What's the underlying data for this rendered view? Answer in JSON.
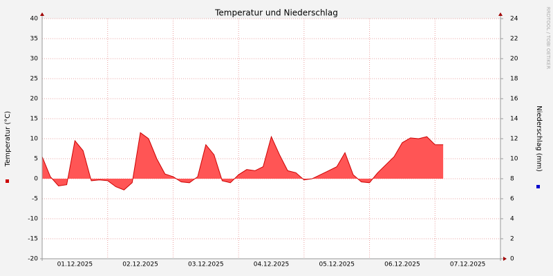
{
  "chart_data": {
    "type": "area",
    "title": "Temperatur und Niederschlag",
    "y_label": "Temperatur (°C)",
    "y2_label": "Niederschlag (mm)",
    "watermark": "RRDTOOL / TOBI OETIKER",
    "categories": [
      null,
      null,
      null,
      null,
      "01.12.2025",
      null,
      null,
      null,
      null,
      null,
      null,
      null,
      "02.12.2025",
      null,
      null,
      null,
      null,
      null,
      null,
      null,
      "03.12.2025",
      null,
      null,
      null,
      null,
      null,
      null,
      null,
      "04.12.2025",
      null,
      null,
      null,
      null,
      null,
      null,
      null,
      "05.12.2025",
      null,
      null,
      null,
      null,
      null,
      null,
      null,
      "06.12.2025",
      null,
      null,
      null,
      null,
      null,
      null,
      null,
      "07.12.2025",
      null,
      null,
      null,
      null
    ],
    "series": [
      {
        "color": "#ff5555",
        "values": [
          5.5,
          0.5,
          -1.8,
          -1.5,
          9.5,
          7,
          -0.5,
          -0.3,
          -0.5,
          -2,
          -2.8,
          -1,
          11.5,
          10,
          5,
          1.2,
          0.5,
          -0.8,
          -1,
          0.5,
          8.5,
          6,
          -0.5,
          -1,
          1,
          2.3,
          2,
          3,
          10.5,
          6,
          2,
          1.5,
          -0.3,
          0,
          1,
          2,
          3,
          6.5,
          1,
          -0.8,
          -1,
          1.5,
          3.5,
          5.5,
          9,
          10.2,
          10,
          10.5,
          8.5,
          8.5,
          null,
          null,
          null,
          null,
          null,
          null,
          null
        ]
      }
    ],
    "ylim": [
      -20,
      40
    ],
    "yticks": [
      -20,
      -15,
      -10,
      -5,
      0,
      5,
      10,
      15,
      20,
      25,
      30,
      35,
      40
    ],
    "y2lim": [
      0,
      24
    ],
    "y2ticks": [
      0,
      2,
      4,
      6,
      8,
      10,
      12,
      14,
      16,
      18,
      20,
      22,
      24
    ],
    "y_color": "#cc0000",
    "y2_color": "#0000cc",
    "grid": true
  }
}
